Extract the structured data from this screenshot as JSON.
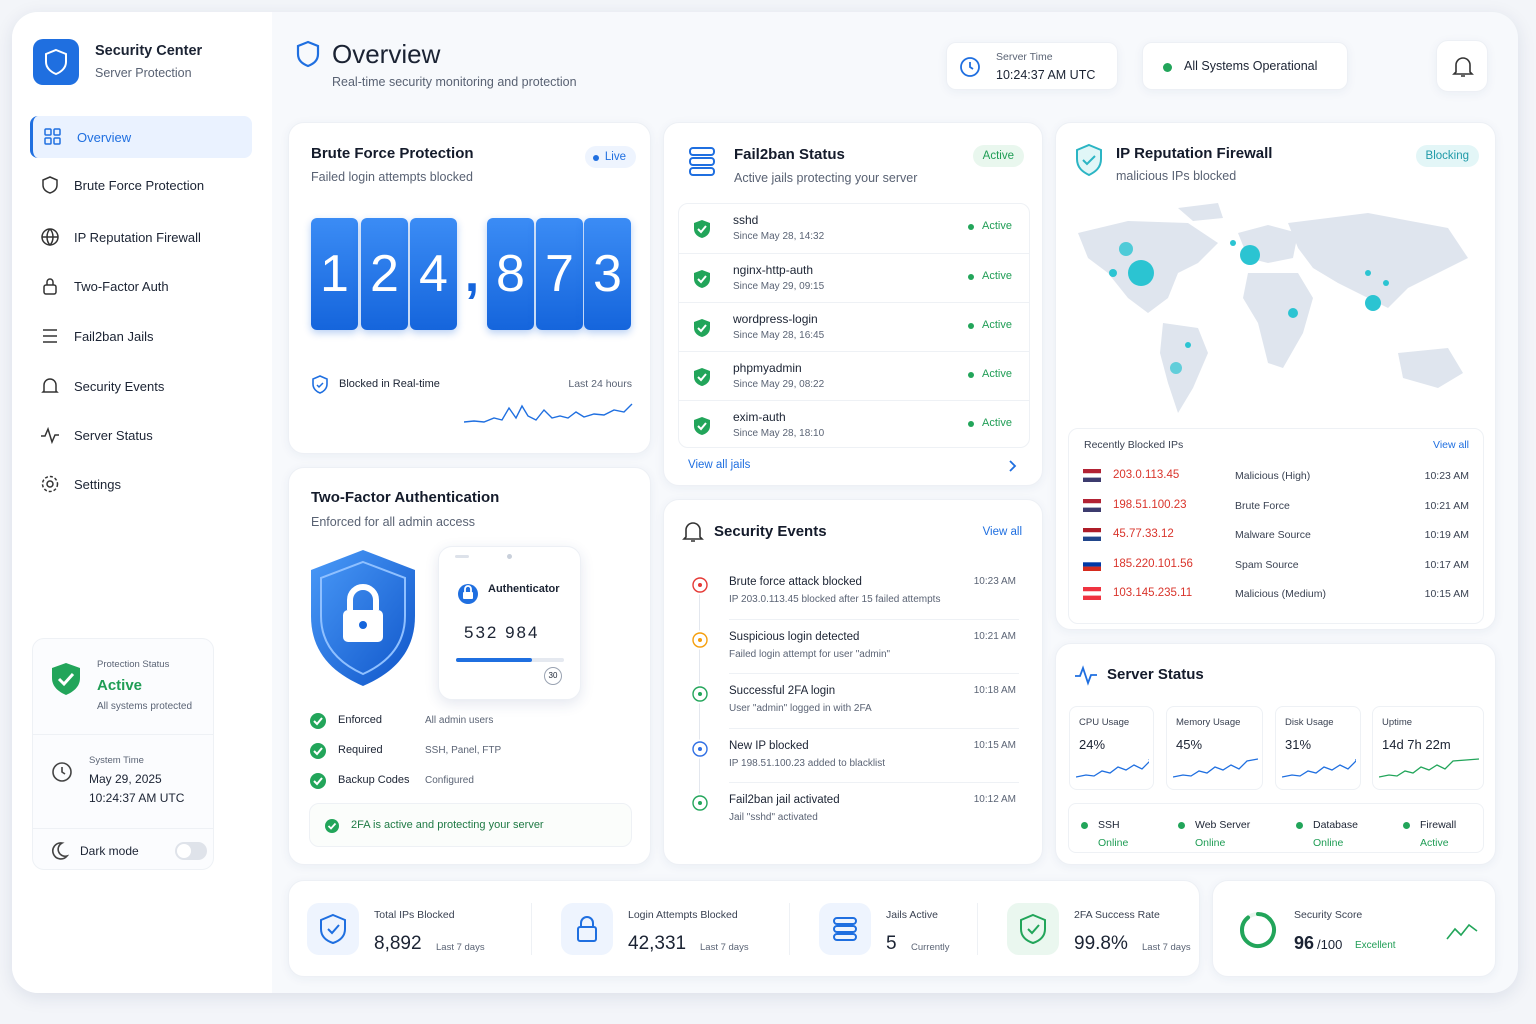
{
  "sidebar": {
    "brand": {
      "title": "Security Center",
      "subtitle": "Server Protection"
    },
    "nav": [
      "Overview",
      "Brute Force Protection",
      "IP Reputation Firewall",
      "Two-Factor Auth",
      "Fail2ban Jails",
      "Security Events",
      "Server Status",
      "Settings"
    ],
    "protection": {
      "label": "Protection Status",
      "status": "Active",
      "note": "All systems protected"
    },
    "time": {
      "label": "System Time",
      "date": "May 29, 2025",
      "time": "10:24:37 AM UTC"
    },
    "dark_mode": "Dark mode"
  },
  "header": {
    "title": "Overview",
    "subtitle": "Real-time security monitoring and protection",
    "server_time_label": "Server Time",
    "server_time": "10:24:37 AM UTC",
    "status": "All Systems Operational"
  },
  "brute_force": {
    "title": "Brute Force Protection",
    "subtitle": "Failed login attempts blocked",
    "badge": "Live",
    "counter_digits": [
      "1",
      "2",
      "4",
      ",",
      "8",
      "7",
      "3"
    ],
    "footer_label": "Blocked in Real-time",
    "range": "Last 24 hours"
  },
  "two_factor": {
    "title": "Two-Factor Authentication",
    "subtitle": "Enforced for all admin access",
    "app": "Authenticator",
    "code": "532 984",
    "timer": "30",
    "rows": [
      [
        "Enforced",
        "All admin users"
      ],
      [
        "Required",
        "SSH, Panel, FTP"
      ],
      [
        "Backup Codes",
        "Configured"
      ]
    ],
    "banner": "2FA is active and protecting your server"
  },
  "fail2ban": {
    "title": "Fail2ban Status",
    "subtitle": "Active jails protecting your server",
    "badge": "Active",
    "jails": [
      {
        "name": "sshd",
        "since": "Since May 28, 14:32",
        "status": "Active"
      },
      {
        "name": "nginx-http-auth",
        "since": "Since May 29, 09:15",
        "status": "Active"
      },
      {
        "name": "wordpress-login",
        "since": "Since May 28, 16:45",
        "status": "Active"
      },
      {
        "name": "phpmyadmin",
        "since": "Since May 29, 08:22",
        "status": "Active"
      },
      {
        "name": "exim-auth",
        "since": "Since May 28, 18:10",
        "status": "Active"
      }
    ],
    "link": "View all jails"
  },
  "events": {
    "title": "Security Events",
    "link": "View all",
    "items": [
      {
        "title": "Brute force attack blocked",
        "detail": "IP 203.0.113.45 blocked after 15 failed attempts",
        "time": "10:23 AM",
        "color": "#e53935"
      },
      {
        "title": "Suspicious login detected",
        "detail": "Failed login attempt for user \"admin\"",
        "time": "10:21 AM",
        "color": "#f59e0b"
      },
      {
        "title": "Successful 2FA login",
        "detail": "User \"admin\" logged in with 2FA",
        "time": "10:18 AM",
        "color": "#22a55a"
      },
      {
        "title": "New IP blocked",
        "detail": "IP 198.51.100.23 added to blacklist",
        "time": "10:15 AM",
        "color": "#2f6fe4"
      },
      {
        "title": "Fail2ban jail activated",
        "detail": "Jail \"sshd\" activated",
        "time": "10:12 AM",
        "color": "#22a55a"
      }
    ]
  },
  "firewall": {
    "title": "IP Reputation Firewall",
    "subtitle": "malicious IPs blocked",
    "badge": "Blocking",
    "recent_label": "Recently Blocked IPs",
    "link": "View all",
    "ips": [
      {
        "ip": "203.0.113.45",
        "reason": "Malicious (High)",
        "time": "10:23 AM"
      },
      {
        "ip": "198.51.100.23",
        "reason": "Brute Force",
        "time": "10:21 AM"
      },
      {
        "ip": "45.77.33.12",
        "reason": "Malware Source",
        "time": "10:19 AM"
      },
      {
        "ip": "185.220.101.56",
        "reason": "Spam Source",
        "time": "10:17 AM"
      },
      {
        "ip": "103.145.235.11",
        "reason": "Malicious (Medium)",
        "time": "10:15 AM"
      }
    ]
  },
  "server_status": {
    "title": "Server Status",
    "metrics": [
      {
        "label": "CPU Usage",
        "value": "24%"
      },
      {
        "label": "Memory Usage",
        "value": "45%"
      },
      {
        "label": "Disk Usage",
        "value": "31%"
      },
      {
        "label": "Uptime",
        "value": "14d 7h 22m"
      }
    ],
    "services": [
      {
        "name": "SSH",
        "status": "Online"
      },
      {
        "name": "Web Server",
        "status": "Online"
      },
      {
        "name": "Database",
        "status": "Online"
      },
      {
        "name": "Firewall",
        "status": "Active"
      }
    ]
  },
  "stats": [
    {
      "label": "Total IPs Blocked",
      "value": "8,892",
      "note": "Last 7 days"
    },
    {
      "label": "Login Attempts Blocked",
      "value": "42,331",
      "note": "Last 7 days"
    },
    {
      "label": "Jails Active",
      "value": "5",
      "note": "Currently"
    },
    {
      "label": "2FA Success Rate",
      "value": "99.8%",
      "note": "Last 7 days"
    }
  ],
  "score": {
    "label": "Security Score",
    "value": "96",
    "max": "/100",
    "rating": "Excellent"
  }
}
